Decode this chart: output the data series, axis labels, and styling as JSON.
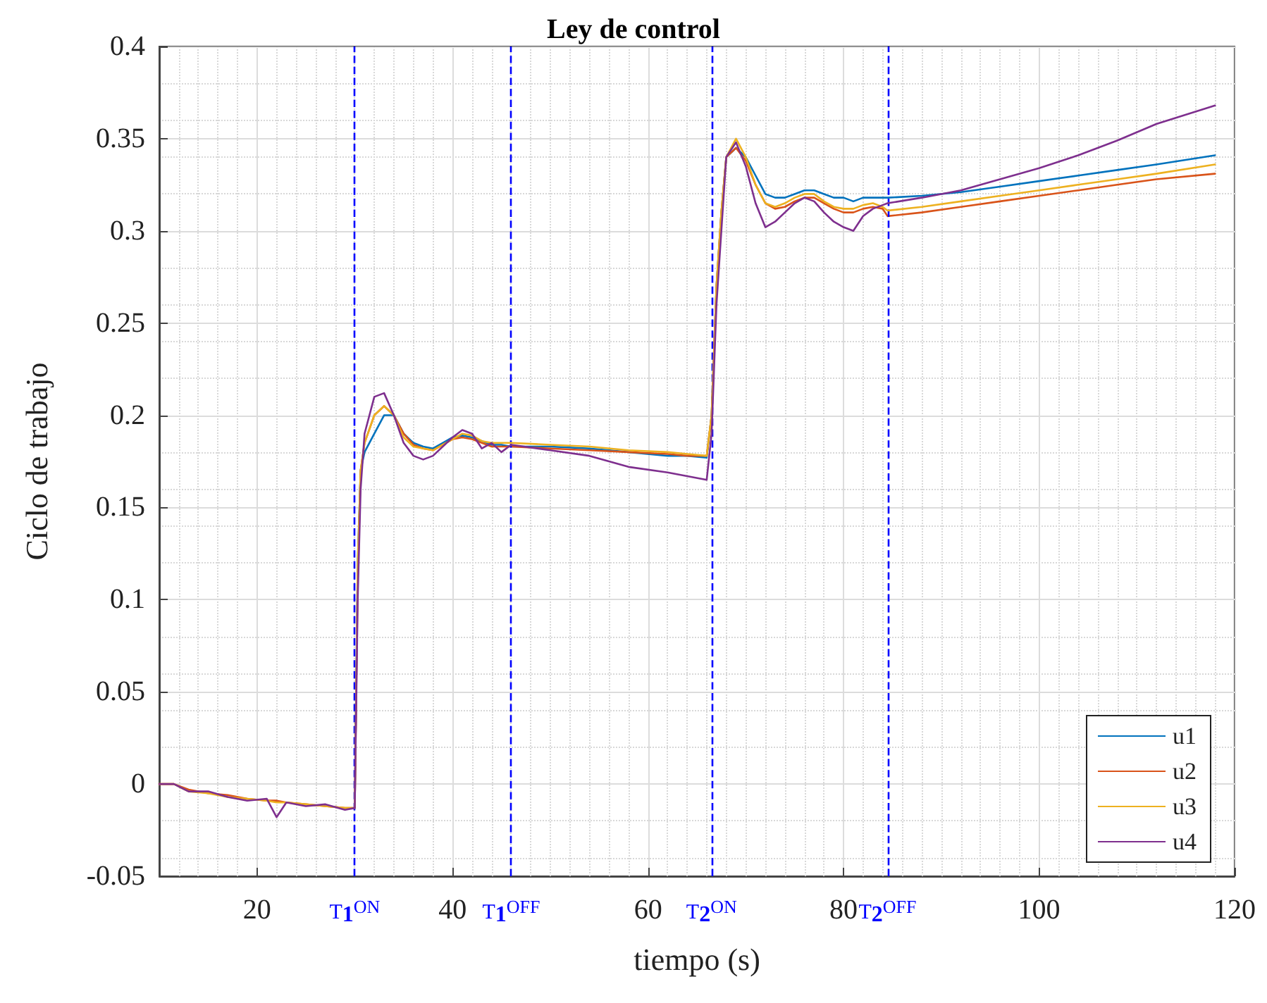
{
  "chart_data": {
    "type": "line",
    "title": "Ley de control",
    "xlabel": "tiempo (s)",
    "ylabel": "Ciclo de trabajo",
    "x": [
      10,
      11.5,
      13,
      15,
      17,
      19,
      21,
      22,
      23,
      25,
      27,
      29,
      30,
      30.3,
      30.6,
      31,
      32,
      33,
      34,
      35,
      36,
      37,
      38,
      39,
      40,
      41,
      42,
      43,
      44,
      45,
      46,
      50,
      54,
      58,
      62,
      64,
      66,
      66.5,
      67,
      67.5,
      68,
      69,
      70,
      71,
      72,
      73,
      74,
      75,
      76,
      77,
      78,
      79,
      80,
      81,
      82,
      83,
      84,
      84.5,
      88,
      92,
      96,
      100,
      104,
      108,
      112,
      118
    ],
    "series": [
      {
        "name": "u1",
        "color": "#0072bd",
        "values": [
          null,
          null,
          null,
          null,
          null,
          null,
          null,
          null,
          null,
          null,
          null,
          null,
          -0.013,
          0.12,
          0.17,
          0.18,
          0.19,
          0.2,
          0.2,
          0.19,
          0.185,
          0.183,
          0.182,
          0.185,
          0.188,
          0.189,
          0.188,
          0.186,
          0.184,
          0.184,
          0.183,
          0.183,
          0.182,
          0.18,
          0.178,
          0.178,
          0.177,
          0.2,
          0.27,
          0.31,
          0.34,
          0.345,
          0.34,
          0.33,
          0.32,
          0.318,
          0.318,
          0.32,
          0.322,
          0.322,
          0.32,
          0.318,
          0.318,
          0.316,
          0.318,
          0.318,
          0.318,
          0.318,
          0.319,
          0.321,
          0.324,
          0.327,
          0.33,
          0.333,
          0.336,
          0.341
        ]
      },
      {
        "name": "u2",
        "color": "#d95319",
        "values": [
          0,
          0,
          -0.003,
          -0.005,
          -0.006,
          -0.008,
          -0.009,
          -0.009,
          -0.01,
          -0.011,
          -0.012,
          -0.013,
          -0.013,
          0.11,
          0.17,
          0.185,
          0.2,
          0.205,
          0.2,
          0.19,
          0.184,
          0.182,
          0.181,
          0.184,
          0.187,
          0.188,
          0.187,
          0.185,
          0.183,
          0.183,
          0.183,
          0.182,
          0.181,
          0.18,
          0.179,
          0.178,
          0.178,
          0.2,
          0.27,
          0.31,
          0.34,
          0.345,
          0.338,
          0.325,
          0.315,
          0.312,
          0.313,
          0.316,
          0.318,
          0.318,
          0.315,
          0.312,
          0.31,
          0.31,
          0.312,
          0.313,
          0.312,
          0.308,
          0.31,
          0.313,
          0.316,
          0.319,
          0.322,
          0.325,
          0.328,
          0.331
        ]
      },
      {
        "name": "u3",
        "color": "#edb120",
        "values": [
          0,
          0,
          -0.004,
          -0.005,
          -0.007,
          -0.008,
          -0.009,
          -0.01,
          -0.01,
          -0.011,
          -0.012,
          -0.013,
          -0.013,
          0.12,
          0.17,
          0.185,
          0.2,
          0.205,
          0.2,
          0.188,
          0.183,
          0.182,
          0.181,
          0.184,
          0.187,
          0.19,
          0.189,
          0.186,
          0.185,
          0.185,
          0.185,
          0.184,
          0.183,
          0.181,
          0.18,
          0.179,
          0.178,
          0.2,
          0.27,
          0.31,
          0.34,
          0.35,
          0.34,
          0.325,
          0.315,
          0.313,
          0.315,
          0.318,
          0.32,
          0.32,
          0.316,
          0.313,
          0.312,
          0.312,
          0.314,
          0.315,
          0.313,
          0.311,
          0.313,
          0.316,
          0.319,
          0.322,
          0.325,
          0.328,
          0.331,
          0.336
        ]
      },
      {
        "name": "u4",
        "color": "#7e2f8e",
        "values": [
          0,
          0,
          -0.004,
          -0.004,
          -0.007,
          -0.009,
          -0.008,
          -0.018,
          -0.01,
          -0.012,
          -0.011,
          -0.014,
          -0.013,
          0.1,
          0.16,
          0.19,
          0.21,
          0.212,
          0.2,
          0.185,
          0.178,
          0.176,
          0.178,
          0.183,
          0.188,
          0.192,
          0.19,
          0.182,
          0.185,
          0.18,
          0.184,
          0.181,
          0.178,
          0.172,
          0.169,
          0.167,
          0.165,
          0.19,
          0.26,
          0.3,
          0.34,
          0.348,
          0.335,
          0.315,
          0.302,
          0.305,
          0.31,
          0.315,
          0.318,
          0.316,
          0.31,
          0.305,
          0.302,
          0.3,
          0.308,
          0.312,
          0.314,
          0.315,
          0.318,
          0.322,
          0.328,
          0.334,
          0.341,
          0.349,
          0.358,
          0.368
        ]
      }
    ],
    "xlim": [
      10,
      120
    ],
    "xticks": [
      20,
      40,
      60,
      80,
      100,
      120
    ],
    "ylim": [
      -0.05,
      0.4
    ],
    "yticks": [
      -0.05,
      0,
      0.05,
      0.1,
      0.15,
      0.2,
      0.25,
      0.3,
      0.35,
      0.4
    ],
    "ref_lines": [
      {
        "axis": "x",
        "value": 30,
        "label": "T$_{1}$$^{ON}$",
        "color": "#0000ff",
        "line_style": "dashed"
      },
      {
        "axis": "x",
        "value": 46,
        "label": "T$_{1}$$^{OFF}$",
        "color": "#0000ff",
        "line_style": "dashed"
      },
      {
        "axis": "x",
        "value": 66.5,
        "label": "T$_{2}$$^{ON}$",
        "color": "#0000ff",
        "line_style": "dashed"
      },
      {
        "axis": "x",
        "value": 84.5,
        "label": "T$_{2}$$^{OFF}$",
        "color": "#0000ff",
        "line_style": "dashed"
      }
    ],
    "grid": true,
    "legend": "bottom right",
    "marker": "none",
    "line_style": "solid"
  }
}
